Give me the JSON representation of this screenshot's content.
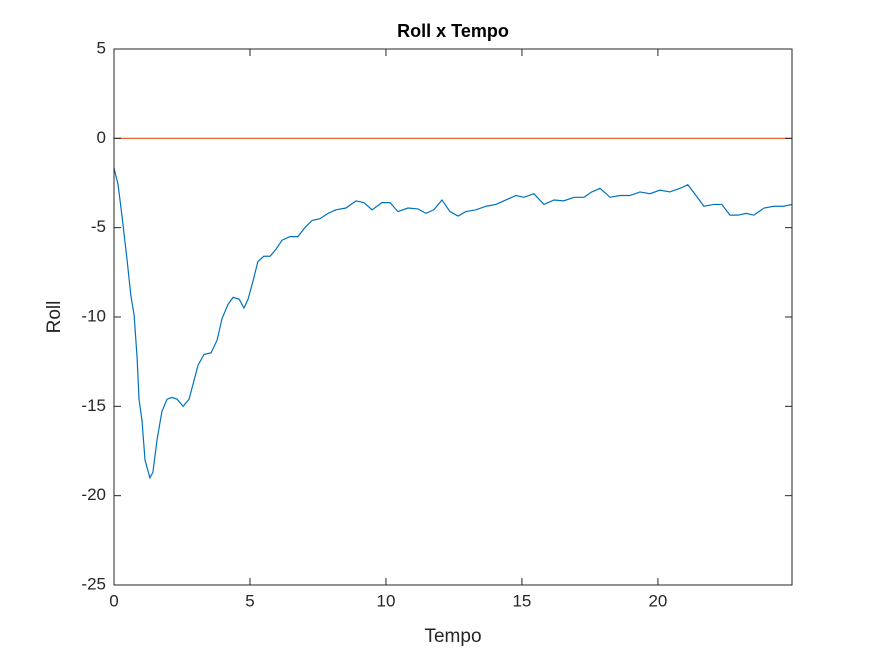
{
  "chart_data": {
    "type": "line",
    "title": "Roll x Tempo",
    "x_label": "Tempo",
    "y_label": "Roll",
    "xlim": [
      0,
      24.93
    ],
    "ylim": [
      -25,
      5
    ],
    "xticks": [
      0,
      5,
      10,
      15,
      20
    ],
    "yticks": [
      -25,
      -20,
      -15,
      -10,
      -5,
      0,
      5
    ],
    "series": [
      {
        "color": "#0072bd",
        "x": [
          0,
          0.15,
          0.29,
          0.48,
          0.62,
          0.74,
          0.85,
          0.92,
          1.03,
          1.14,
          1.32,
          1.43,
          1.58,
          1.76,
          1.95,
          2.13,
          2.32,
          2.54,
          2.76,
          2.9,
          3.09,
          3.31,
          3.57,
          3.79,
          3.97,
          4.19,
          4.38,
          4.6,
          4.78,
          4.93,
          5.11,
          5.29,
          5.51,
          5.74,
          5.96,
          6.18,
          6.47,
          6.76,
          7.02,
          7.28,
          7.57,
          7.87,
          8.16,
          8.53,
          8.9,
          9.19,
          9.49,
          9.85,
          10.15,
          10.44,
          10.81,
          11.18,
          11.47,
          11.76,
          12.06,
          12.35,
          12.65,
          12.94,
          13.31,
          13.68,
          14.04,
          14.41,
          14.78,
          15.07,
          15.44,
          15.81,
          16.18,
          16.54,
          16.91,
          17.28,
          17.57,
          17.87,
          18.24,
          18.6,
          18.97,
          19.34,
          19.71,
          20.07,
          20.44,
          20.81,
          21.1,
          21.4,
          21.69,
          22.06,
          22.35,
          22.65,
          22.94,
          23.24,
          23.53,
          23.9,
          24.26,
          24.63,
          24.93
        ],
        "values": [
          -1.66,
          -2.6,
          -4.3,
          -6.8,
          -8.8,
          -9.9,
          -12.3,
          -14.6,
          -15.8,
          -18.0,
          -19.0,
          -18.7,
          -16.9,
          -15.3,
          -14.6,
          -14.5,
          -14.6,
          -15.0,
          -14.6,
          -13.8,
          -12.7,
          -12.1,
          -12.0,
          -11.3,
          -10.1,
          -9.3,
          -8.9,
          -9.0,
          -9.5,
          -9.0,
          -8.0,
          -6.9,
          -6.6,
          -6.6,
          -6.2,
          -5.7,
          -5.5,
          -5.5,
          -5.0,
          -4.6,
          -4.5,
          -4.2,
          -4.0,
          -3.9,
          -3.5,
          -3.6,
          -4.0,
          -3.6,
          -3.6,
          -4.1,
          -3.9,
          -3.95,
          -4.2,
          -4.0,
          -3.45,
          -4.1,
          -4.35,
          -4.1,
          -4.0,
          -3.8,
          -3.7,
          -3.45,
          -3.2,
          -3.3,
          -3.1,
          -3.7,
          -3.45,
          -3.5,
          -3.3,
          -3.3,
          -3.0,
          -2.8,
          -3.3,
          -3.2,
          -3.2,
          -3.0,
          -3.1,
          -2.9,
          -3.0,
          -2.8,
          -2.6,
          -3.2,
          -3.8,
          -3.7,
          -3.7,
          -4.3,
          -4.3,
          -4.2,
          -4.3,
          -3.9,
          -3.8,
          -3.8,
          -3.7
        ]
      },
      {
        "color": "#d95319",
        "x": [
          0,
          24.93
        ],
        "values": [
          0,
          0
        ]
      }
    ]
  }
}
